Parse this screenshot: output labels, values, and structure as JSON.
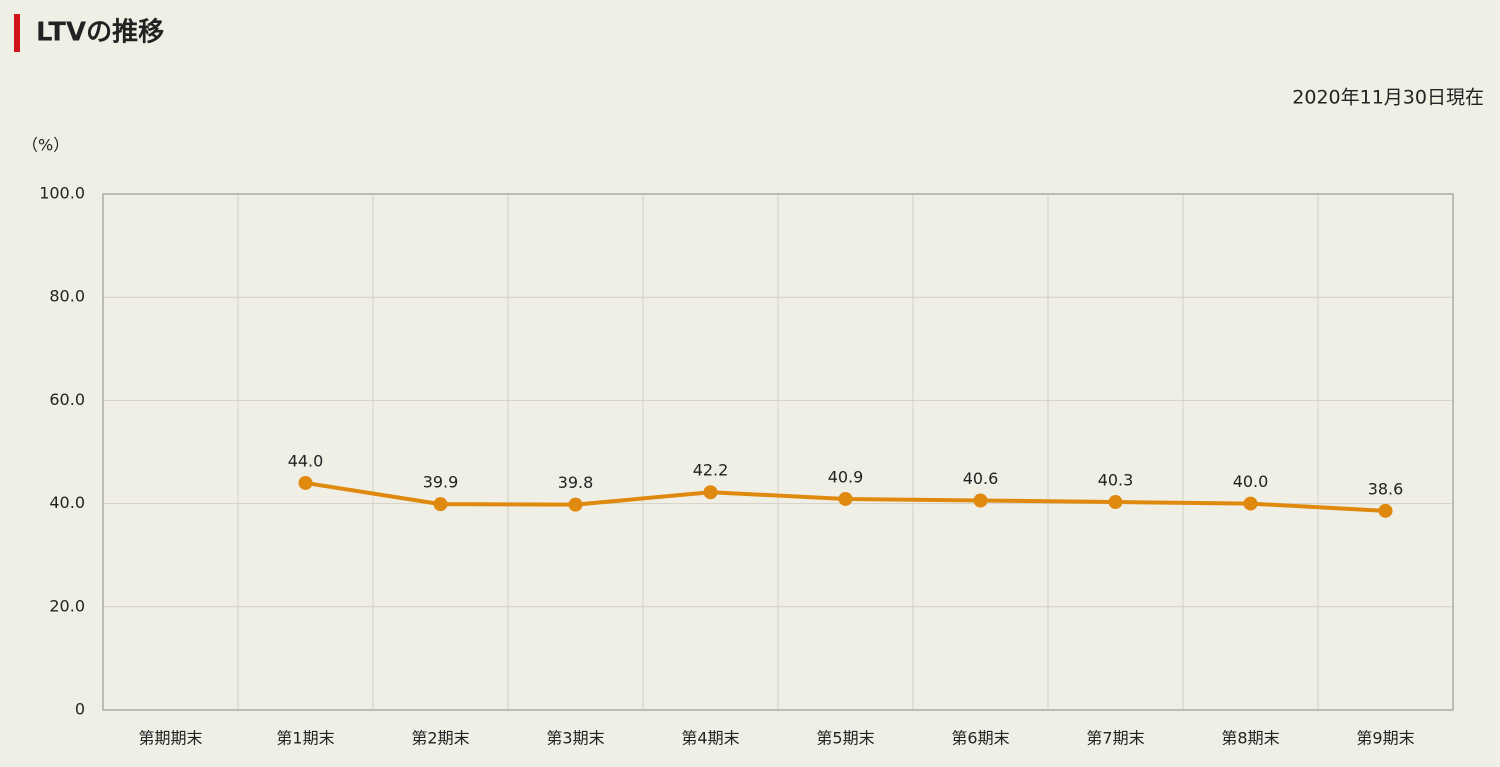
{
  "chart_data": {
    "type": "line",
    "title": "LTVの推移",
    "subtitle": "2020年11月30日現在",
    "y_label": "（%）",
    "categories": [
      "第期期末",
      "第1期末",
      "第2期末",
      "第3期末",
      "第4期末",
      "第5期末",
      "第6期末",
      "第7期末",
      "第8期末",
      "第9期末"
    ],
    "values": [
      null,
      44.0,
      39.9,
      39.8,
      42.2,
      40.9,
      40.6,
      40.3,
      40.0,
      38.6
    ],
    "value_labels": [
      null,
      "44.0",
      "39.9",
      "39.8",
      "42.2",
      "40.9",
      "40.6",
      "40.3",
      "40.0",
      "38.6"
    ],
    "color": "#df8a0e",
    "ylim": [
      0,
      100
    ],
    "yticks": [
      0,
      {
        "value": 20,
        "label": "20.0"
      },
      {
        "value": 40,
        "label": "40.0"
      },
      {
        "value": 60,
        "label": "60.0"
      },
      {
        "value": 80,
        "label": "80.0"
      },
      {
        "value": 100,
        "label": "100.0"
      }
    ],
    "grid": true
  }
}
